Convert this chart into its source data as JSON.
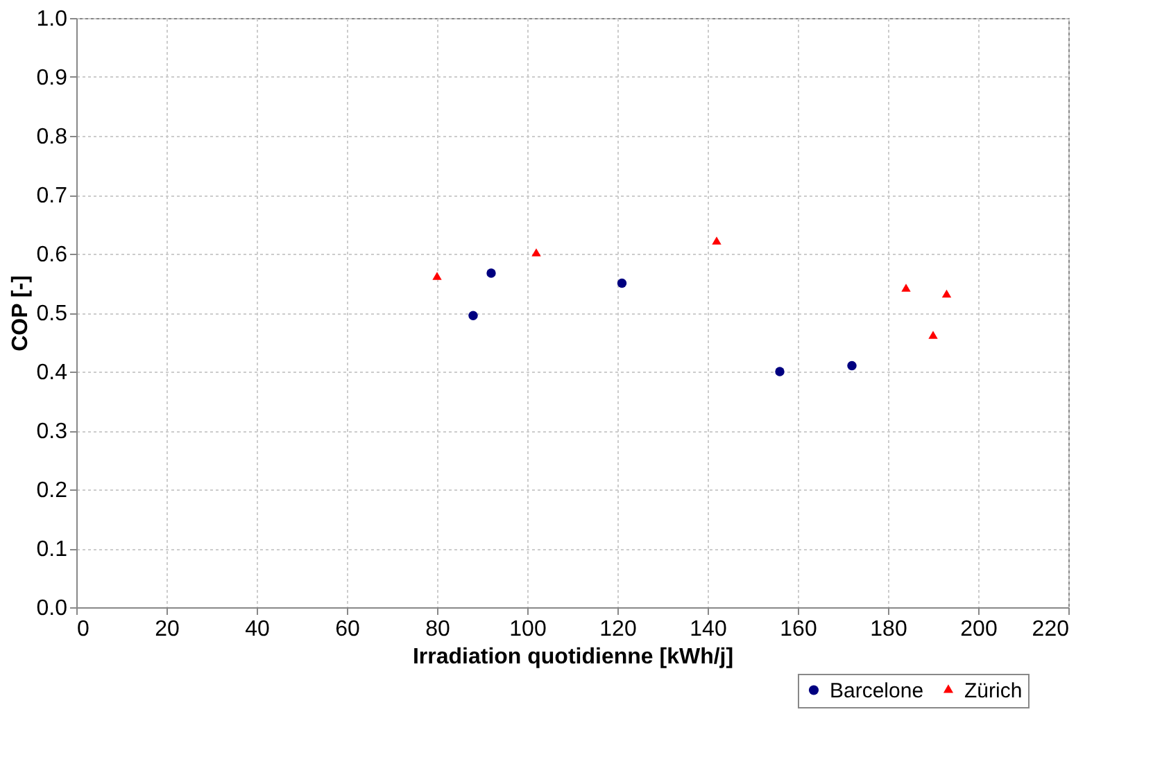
{
  "chart_data": {
    "type": "scatter",
    "xlabel": "Irradiation quotidienne [kWh/j]",
    "ylabel": "COP [-]",
    "xlim": [
      0,
      220
    ],
    "xticks": [
      0,
      20,
      40,
      60,
      80,
      100,
      120,
      140,
      160,
      180,
      200,
      220
    ],
    "ylim": [
      0,
      1
    ],
    "yticks": [
      {
        "value": 0,
        "label": "0.0"
      },
      {
        "value": 0.1,
        "label": "0.1"
      },
      {
        "value": 0.2,
        "label": "0.2"
      },
      {
        "value": 0.3,
        "label": "0.3"
      },
      {
        "value": 0.4,
        "label": "0.4"
      },
      {
        "value": 0.5,
        "label": "0.5"
      },
      {
        "value": 0.6,
        "label": "0.6"
      },
      {
        "value": 0.7,
        "label": "0.7"
      },
      {
        "value": 0.8,
        "label": "0.8"
      },
      {
        "value": 0.9,
        "label": "0.9"
      },
      {
        "value": 1,
        "label": "1.0"
      }
    ],
    "grid": true,
    "legend": "bottom right",
    "series": [
      {
        "name": "Barcelone",
        "color": "#000080",
        "marker": "circle",
        "x": [
          88,
          92,
          121,
          156,
          172
        ],
        "values": [
          0.495,
          0.567,
          0.55,
          0.4,
          0.41
        ]
      },
      {
        "name": "Zürich",
        "color": "#ff0000",
        "marker": "triangle",
        "x": [
          80,
          102,
          142,
          184,
          190,
          193
        ],
        "values": [
          0.56,
          0.6,
          0.62,
          0.54,
          0.46,
          0.53
        ]
      }
    ]
  }
}
